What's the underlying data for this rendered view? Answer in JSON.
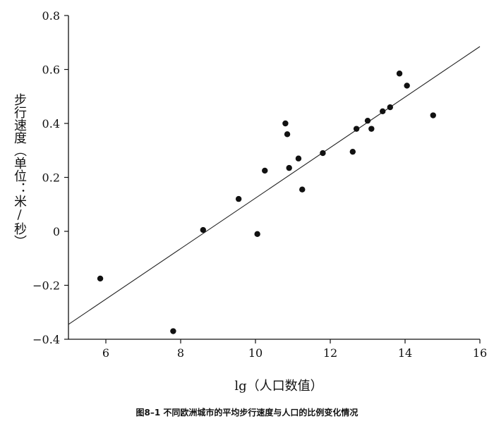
{
  "caption": "图8–1 不同欧洲城市的平均步行速度与人口的比例变化情况",
  "chart_data": {
    "type": "scatter",
    "xlabel": "lg（人口数值）",
    "ylabel": "步行速度（单位：米/秒）",
    "xlim": [
      5,
      16
    ],
    "ylim": [
      -0.4,
      0.8
    ],
    "xticks": [
      6,
      8,
      10,
      12,
      14,
      16
    ],
    "yticks": [
      -0.4,
      -0.2,
      0,
      0.2,
      0.4,
      0.6,
      0.8
    ],
    "ytick_labels": [
      "−0.4",
      "−0.2",
      "0",
      "0.2",
      "0.4",
      "0.6",
      "0.8"
    ],
    "grid": false,
    "legend": "none",
    "points": [
      {
        "x": 5.85,
        "y": -0.175
      },
      {
        "x": 7.8,
        "y": -0.37
      },
      {
        "x": 8.6,
        "y": 0.005
      },
      {
        "x": 9.55,
        "y": 0.12
      },
      {
        "x": 10.05,
        "y": -0.01
      },
      {
        "x": 10.25,
        "y": 0.225
      },
      {
        "x": 10.8,
        "y": 0.4
      },
      {
        "x": 10.85,
        "y": 0.36
      },
      {
        "x": 10.9,
        "y": 0.235
      },
      {
        "x": 11.15,
        "y": 0.27
      },
      {
        "x": 11.25,
        "y": 0.155
      },
      {
        "x": 11.8,
        "y": 0.29
      },
      {
        "x": 12.6,
        "y": 0.295
      },
      {
        "x": 12.7,
        "y": 0.38
      },
      {
        "x": 13.0,
        "y": 0.41
      },
      {
        "x": 13.1,
        "y": 0.38
      },
      {
        "x": 13.4,
        "y": 0.445
      },
      {
        "x": 13.6,
        "y": 0.46
      },
      {
        "x": 13.85,
        "y": 0.585
      },
      {
        "x": 14.05,
        "y": 0.54
      },
      {
        "x": 14.75,
        "y": 0.43
      }
    ],
    "trendline": {
      "x": [
        5,
        16
      ],
      "y": [
        -0.345,
        0.685
      ]
    },
    "colors": {
      "points": "#111111",
      "line": "#222222",
      "axis": "#111111"
    }
  }
}
